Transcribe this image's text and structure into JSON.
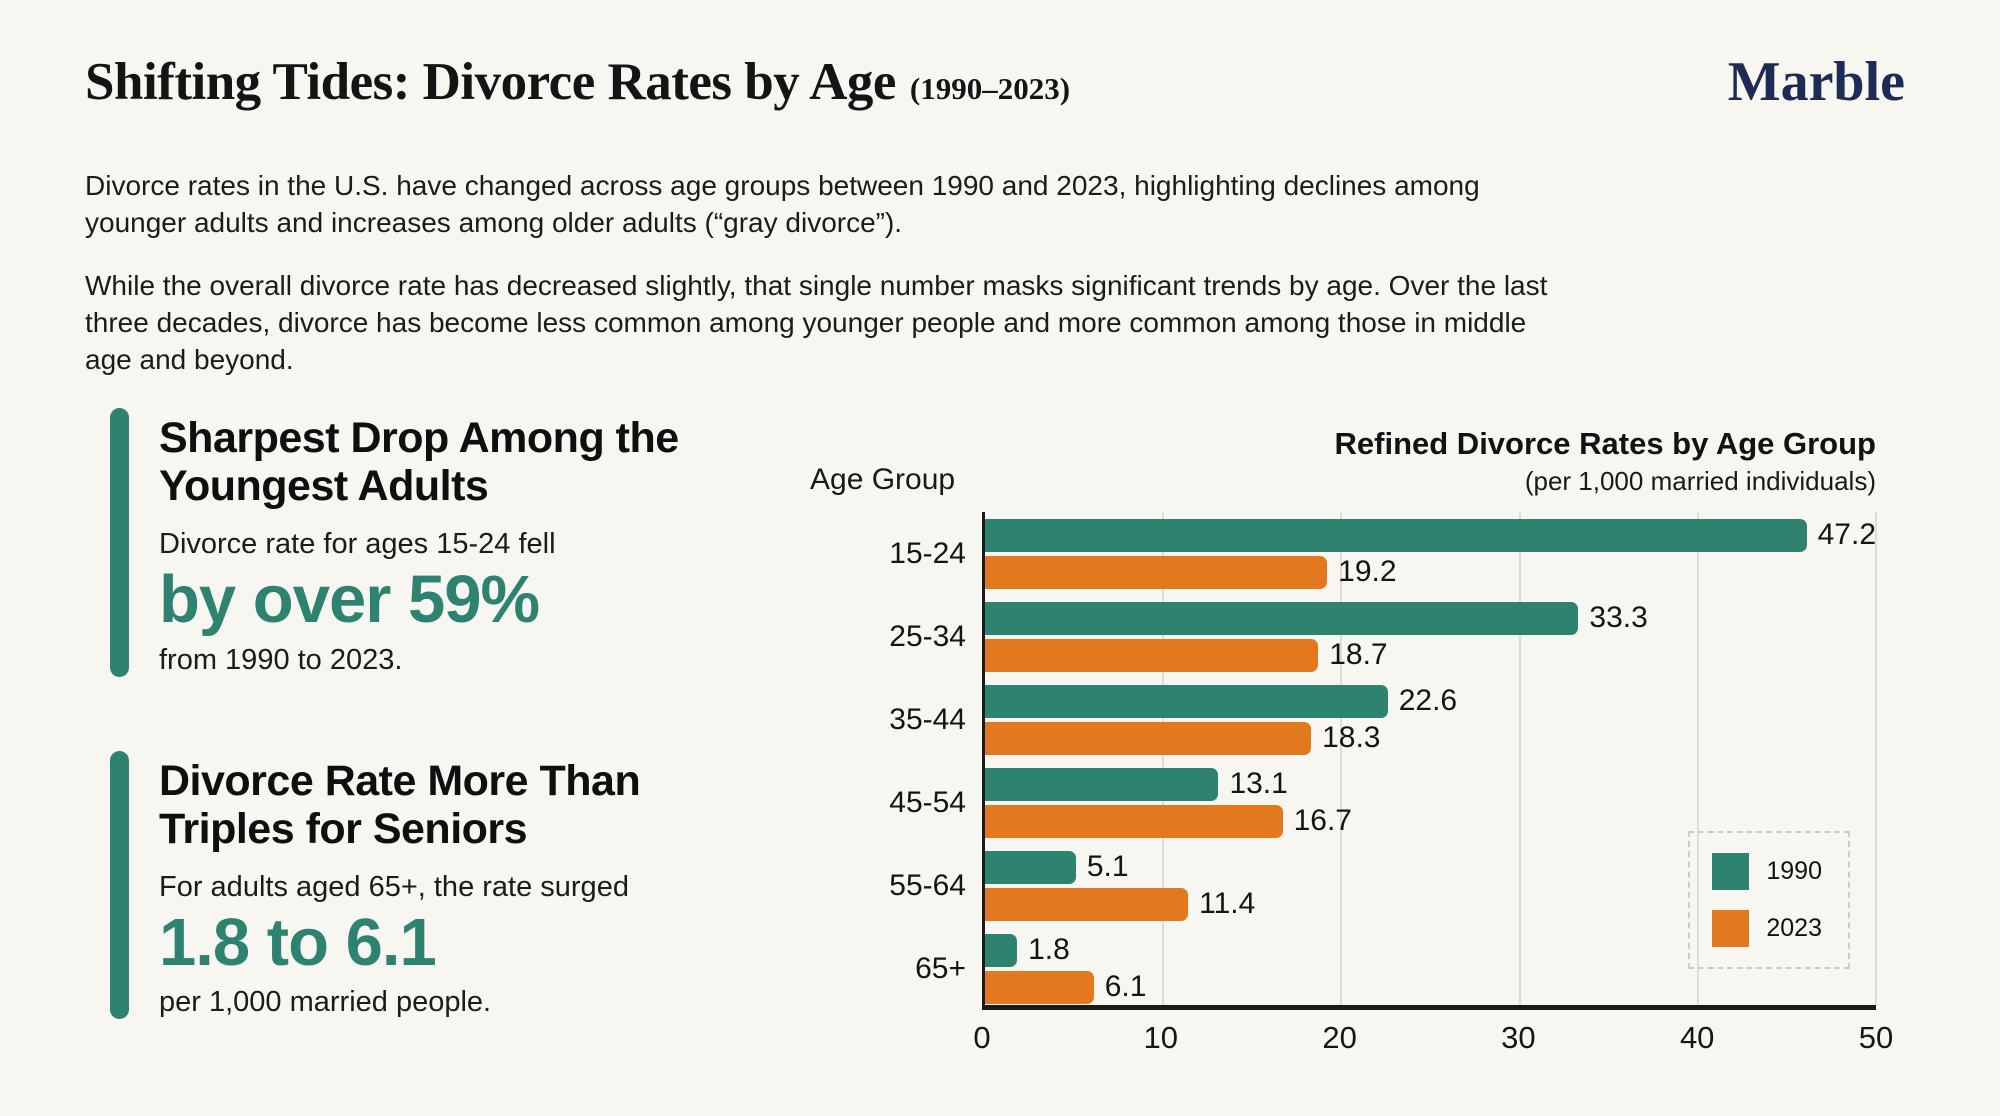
{
  "page": {
    "title": "Shifting Tides: Divorce Rates by Age",
    "title_suffix": "(1990–2023)",
    "logo": "Marble"
  },
  "intro": {
    "p1": "Divorce rates in the U.S. have changed across age groups between 1990 and 2023, highlighting declines among younger adults and increases among older adults (“gray divorce”).",
    "p2": "While the overall divorce rate has decreased slightly, that single number masks significant trends by age. Over the last three decades, divorce has become less common among younger people and more common among those in middle age and beyond."
  },
  "callouts": [
    {
      "heading": "Sharpest Drop Among the Youngest Adults",
      "lead": "Divorce rate for ages 15-24 fell",
      "highlight": "by over 59%",
      "tail": "from 1990 to 2023."
    },
    {
      "heading": "Divorce Rate More Than Triples for Seniors",
      "lead": "For adults aged 65+, the rate surged",
      "highlight": "1.8 to 6.1",
      "tail": "per 1,000 married people."
    }
  ],
  "chart": {
    "title": "Refined Divorce Rates by Age Group",
    "subtitle": "(per 1,000 married individuals)",
    "axis_label": "Age Group"
  },
  "chart_data": {
    "type": "bar",
    "orientation": "horizontal",
    "title": "Refined Divorce Rates by Age Group",
    "subtitle": "(per 1,000 married individuals)",
    "ylabel": "Age Group",
    "categories": [
      "15-24",
      "25-34",
      "35-44",
      "45-54",
      "55-64",
      "65+"
    ],
    "series": [
      {
        "name": "1990",
        "color": "#2E8270",
        "values": [
          47.2,
          33.3,
          22.6,
          13.1,
          5.1,
          1.8
        ]
      },
      {
        "name": "2023",
        "color": "#E2791F",
        "values": [
          19.2,
          18.7,
          18.3,
          16.7,
          11.4,
          6.1
        ]
      }
    ],
    "xticks": [
      0,
      10,
      20,
      30,
      40,
      50
    ],
    "xlim": [
      0,
      50
    ],
    "grid": true,
    "legend_position": "inside-right-bottom"
  },
  "colors": {
    "background": "#F8F6F1",
    "accent_teal": "#2E8270",
    "accent_orange": "#E2791F",
    "logo_navy": "#1D2B55",
    "text": "#1b1916"
  }
}
